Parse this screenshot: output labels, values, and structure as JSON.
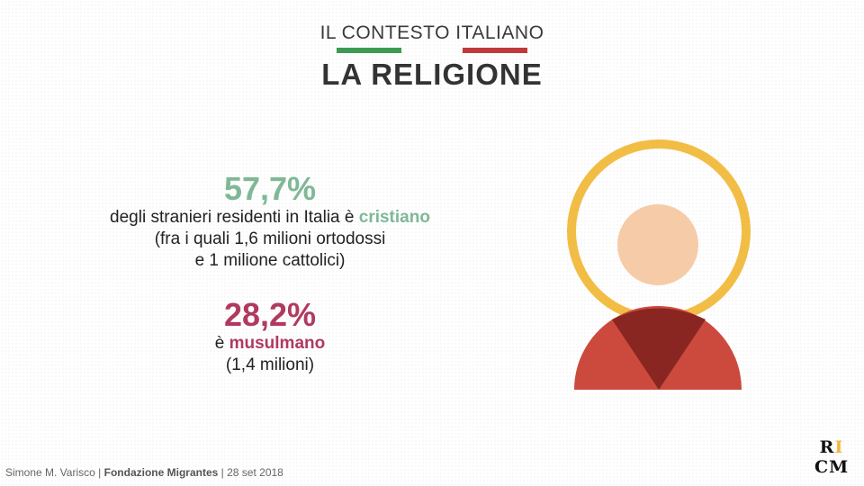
{
  "header": {
    "kicker": "IL CONTESTO ITALIANO",
    "title": "LA RELIGIONE",
    "flag_colors": [
      "#3c9a52",
      "#c0393b"
    ]
  },
  "stats": [
    {
      "percent": "57,7%",
      "line1_prefix": "degli stranieri residenti in Italia è ",
      "line1_highlight": "cristiano",
      "line2": "(fra i quali 1,6 milioni ortodossi",
      "line3": "e 1 milione cattolici)",
      "color": "#7fb897"
    },
    {
      "percent": "28,2%",
      "line1_prefix": "è ",
      "line1_highlight": "musulmano",
      "line2": "(1,4 milioni)",
      "color": "#b03a5f"
    }
  ],
  "illustration": {
    "icon": "person-with-halo-icon",
    "colors": {
      "halo": "#f2bd45",
      "head": "#f6cba8",
      "body": "#cc4a3d",
      "collar": "#8a2621"
    }
  },
  "footer": {
    "author": "Simone M. Varisco",
    "separator": "|",
    "organization": "Fondazione Migrantes",
    "date": "28 set 2018"
  },
  "logo": {
    "top": "R",
    "accent": "I",
    "bottom": "CM"
  }
}
